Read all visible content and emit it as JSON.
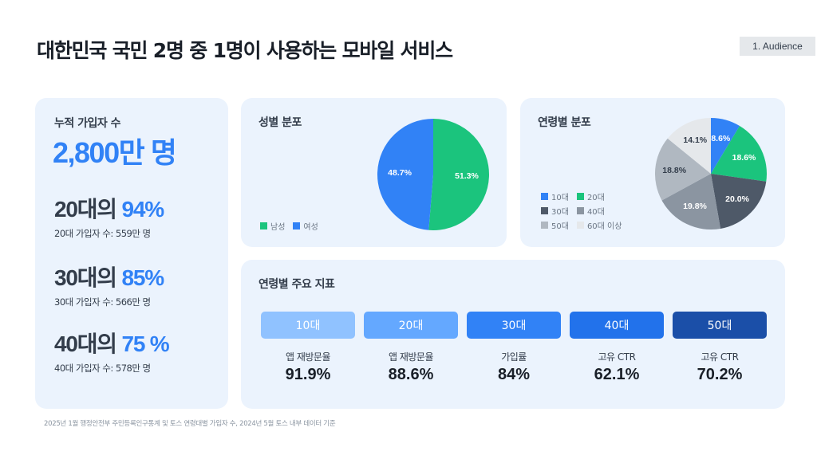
{
  "header": {
    "title": "대한민국 국민 2명 중 1명이 사용하는 모바일 서비스",
    "section_tag": "1. Audience"
  },
  "summary": {
    "total_label": "누적 가입자 수",
    "total_value": "2,800만 명",
    "age_stats": [
      {
        "prefix": "20대의 ",
        "pct": "94%",
        "sub": "20대 가입자 수: 559만 명"
      },
      {
        "prefix": "30대의 ",
        "pct": "85%",
        "sub": "30대 가입자 수: 566만 명"
      },
      {
        "prefix": "40대의 ",
        "pct": "75 %",
        "sub": "40대 가입자 수: 578만 명"
      }
    ]
  },
  "gender": {
    "title": "성별 분포",
    "legend": [
      "남성",
      "여성"
    ]
  },
  "age": {
    "title": "연령별 분포",
    "legend": [
      "10대",
      "20대",
      "30대",
      "40대",
      "50대",
      "60대 이상"
    ]
  },
  "metrics": {
    "title": "연령별 주요 지표",
    "items": [
      {
        "age": "10대",
        "name": "앱 재방문율",
        "value": "91.9%",
        "color": "#90c2ff"
      },
      {
        "age": "20대",
        "name": "앱 재방문율",
        "value": "88.6%",
        "color": "#64a8ff"
      },
      {
        "age": "30대",
        "name": "가입률",
        "value": "84%",
        "color": "#3182f6"
      },
      {
        "age": "40대",
        "name": "고유 CTR",
        "value": "62.1%",
        "color": "#2272eb"
      },
      {
        "age": "50대",
        "name": "고유 CTR",
        "value": "70.2%",
        "color": "#1b4fa8"
      }
    ]
  },
  "footer": {
    "note": "2025년 1월 행정안전부 주민등록인구통계 및 토스 연령대별 가입자 수, 2024년 5월 토스 내부 데이터 기준"
  },
  "chart_data": [
    {
      "type": "pie",
      "title": "성별 분포",
      "categories": [
        "남성",
        "여성"
      ],
      "values": [
        51.3,
        48.7
      ],
      "colors": [
        "#1bc47d",
        "#3182f6"
      ],
      "labels": [
        "51.3%",
        "48.7%"
      ],
      "legend_position": "bottom-left"
    },
    {
      "type": "pie",
      "title": "연령별 분포",
      "categories": [
        "10대",
        "20대",
        "30대",
        "40대",
        "50대",
        "60대 이상"
      ],
      "values": [
        8.6,
        18.6,
        20.0,
        19.8,
        18.8,
        14.1
      ],
      "colors": [
        "#3182f6",
        "#1bc47d",
        "#4e5968",
        "#8b95a1",
        "#b0b8c1",
        "#e5e8eb"
      ],
      "labels": [
        "8.6%",
        "18.6%",
        "20.0%",
        "19.8%",
        "18.8%",
        "14.1%"
      ],
      "legend_position": "bottom-left"
    },
    {
      "type": "table",
      "title": "연령별 주요 지표",
      "categories": [
        "10대",
        "20대",
        "30대",
        "40대",
        "50대"
      ],
      "metrics": [
        "앱 재방문율",
        "앱 재방문율",
        "가입률",
        "고유 CTR",
        "고유 CTR"
      ],
      "values": [
        91.9,
        88.6,
        84,
        62.1,
        70.2
      ]
    }
  ]
}
